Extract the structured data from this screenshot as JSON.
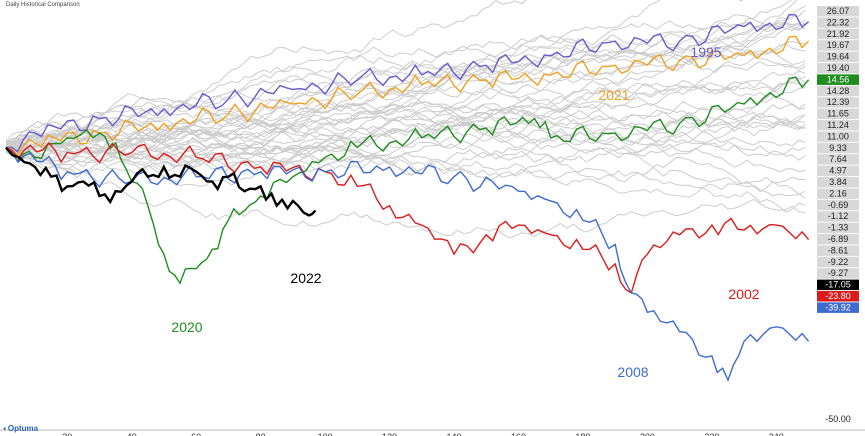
{
  "chart_data": {
    "type": "line",
    "title": "Daily Historical Comparison",
    "xlabel": "",
    "ylabel": "",
    "xlim": [
      1,
      252
    ],
    "ylim": [
      -55,
      28
    ],
    "x_ticks": [
      20,
      40,
      60,
      80,
      100,
      120,
      140,
      160,
      180,
      200,
      220,
      240
    ],
    "y_axis_values": [
      "26.07",
      "22.32",
      "21.92",
      "19.67",
      "19.64",
      "19.40",
      "14.56",
      "14.28",
      "12.39",
      "11.65",
      "11.24",
      "11.00",
      "9.33",
      "7.64",
      "4.97",
      "3.84",
      "2.16",
      "-0.69",
      "-1.12",
      "-1.33",
      "-6.89",
      "-8.61",
      "-9.22",
      "-9.27",
      "-17.05",
      "-23.80",
      "-39.92",
      "-50.00"
    ],
    "highlight_colors": {
      "14.56": "#1e8c1e",
      "-17.05": "#000000",
      "-23.80": "#dd1a1a",
      "-39.92": "#3f6bcf",
      "default": "#d8d8d8"
    },
    "series": [
      {
        "name": "1995",
        "color": "#6a5acd",
        "x": [
          1,
          10,
          30,
          50,
          70,
          90,
          110,
          130,
          150,
          170,
          190,
          210,
          230,
          250
        ],
        "values": [
          0,
          3,
          6,
          8,
          10,
          12,
          14,
          15,
          17,
          19,
          22,
          22,
          25,
          26
        ]
      },
      {
        "name": "2021",
        "color": "#f0a020",
        "x": [
          1,
          10,
          30,
          50,
          70,
          90,
          110,
          130,
          150,
          170,
          190,
          210,
          230,
          250
        ],
        "values": [
          0,
          1,
          3,
          5,
          7,
          9,
          11,
          13,
          14,
          15,
          17,
          18,
          19,
          22
        ]
      },
      {
        "name": "2020",
        "color": "#1e8c1e",
        "x": [
          1,
          10,
          20,
          30,
          35,
          40,
          45,
          50,
          55,
          60,
          65,
          70,
          75,
          80,
          90,
          100,
          110,
          130,
          150,
          165,
          170,
          190,
          210,
          230,
          250
        ],
        "values": [
          0,
          -2,
          2,
          3,
          1,
          -7,
          -12,
          -22,
          -28,
          -25,
          -21,
          -15,
          -13,
          -10,
          -6,
          -2,
          0,
          2,
          4,
          6,
          2,
          3,
          5,
          9,
          14
        ]
      },
      {
        "name": "2002",
        "color": "#dd1a1a",
        "x": [
          1,
          20,
          40,
          60,
          80,
          100,
          110,
          120,
          130,
          140,
          150,
          160,
          170,
          180,
          190,
          195,
          200,
          210,
          220,
          230,
          240,
          250
        ],
        "values": [
          0,
          -1,
          -1,
          -2,
          -4,
          -5,
          -8,
          -12,
          -16,
          -22,
          -18,
          -16,
          -18,
          -21,
          -24,
          -30,
          -22,
          -18,
          -16,
          -17,
          -16,
          -19
        ]
      },
      {
        "name": "2008",
        "color": "#3f6bcf",
        "x": [
          1,
          20,
          40,
          60,
          80,
          100,
          120,
          140,
          160,
          170,
          180,
          190,
          195,
          200,
          210,
          220,
          225,
          230,
          240,
          250
        ],
        "values": [
          0,
          -5,
          -7,
          -6,
          -5,
          -5,
          -4,
          -6,
          -9,
          -11,
          -15,
          -20,
          -30,
          -34,
          -38,
          -43,
          -48,
          -40,
          -37,
          -40
        ]
      },
      {
        "name": "2022",
        "color": "#000000",
        "x": [
          1,
          5,
          10,
          15,
          20,
          25,
          30,
          35,
          40,
          45,
          50,
          55,
          60,
          65,
          70,
          75,
          80,
          85,
          90,
          95,
          97
        ],
        "values": [
          0,
          -2,
          -4,
          -6,
          -8,
          -7,
          -10,
          -9,
          -7,
          -6,
          -4,
          -6,
          -5,
          -7,
          -6,
          -9,
          -8,
          -12,
          -11,
          -14,
          -13
        ]
      }
    ],
    "gray_series_count": 38,
    "series_labels": [
      "1995",
      "2021",
      "2020",
      "2002",
      "2008",
      "2022"
    ]
  },
  "branding": {
    "logo_text": "Optuma"
  }
}
